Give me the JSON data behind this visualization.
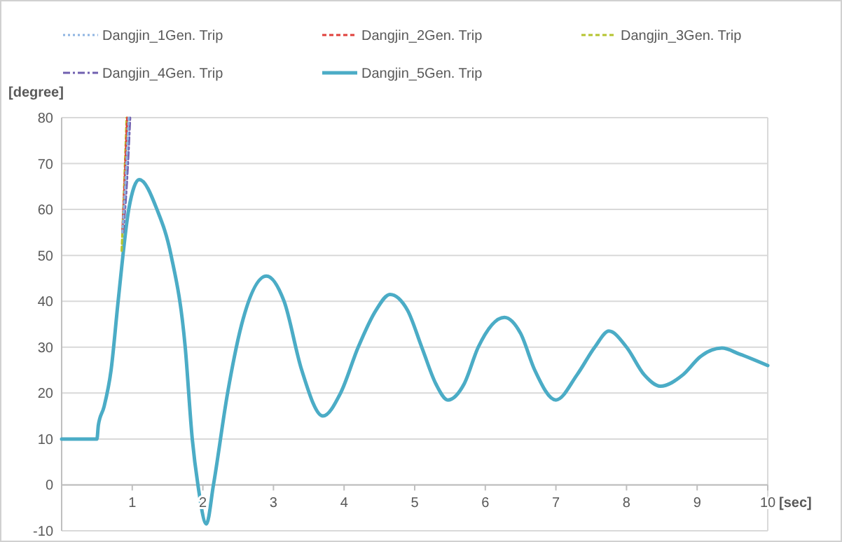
{
  "chart_data": {
    "type": "line",
    "xlabel": "[sec]",
    "ylabel": "[degree]",
    "xlim": [
      0,
      10
    ],
    "ylim": [
      -10,
      80
    ],
    "xticks": [
      1,
      2,
      3,
      4,
      5,
      6,
      7,
      8,
      9,
      10
    ],
    "yticks": [
      -10,
      0,
      10,
      20,
      30,
      40,
      50,
      60,
      70,
      80
    ],
    "grid": "y",
    "legend": "top",
    "series": [
      {
        "name": "Dangjin_1Gen. Trip",
        "color": "#8db4e2",
        "line_style": "dotted",
        "x": [
          0.86,
          0.9,
          0.95
        ],
        "values": [
          55,
          65,
          80
        ]
      },
      {
        "name": "Dangjin_2Gen. Trip",
        "color": "#e0403c",
        "line_style": "dashed",
        "x": [
          0.86,
          0.89,
          0.93
        ],
        "values": [
          55,
          65,
          80
        ]
      },
      {
        "name": "Dangjin_3Gen. Trip",
        "color": "#b5c42e",
        "line_style": "dashed",
        "x": [
          0.85,
          0.885,
          0.92
        ],
        "values": [
          51,
          65,
          80
        ]
      },
      {
        "name": "Dangjin_4Gen. Trip",
        "color": "#7060b0",
        "line_style": "dashdot",
        "x": [
          0.87,
          0.92,
          0.97
        ],
        "values": [
          55,
          65,
          80
        ]
      },
      {
        "name": "Dangjin_5Gen. Trip",
        "color": "#4bacc6",
        "line_style": "solid",
        "x": [
          0,
          0.5,
          0.52,
          0.6,
          0.7,
          0.8,
          0.95,
          1.1,
          1.35,
          1.55,
          1.75,
          1.85,
          1.93,
          2.05,
          2.15,
          2.35,
          2.55,
          2.9,
          3.15,
          3.4,
          3.7,
          3.95,
          4.2,
          4.45,
          4.65,
          4.9,
          5.1,
          5.3,
          5.47,
          5.7,
          5.9,
          6.27,
          6.5,
          6.7,
          7.0,
          7.3,
          7.55,
          7.75,
          8.0,
          8.25,
          8.48,
          8.8,
          9.05,
          9.35,
          9.6,
          10
        ],
        "values": [
          10,
          10,
          13,
          17,
          25,
          40,
          60,
          66.5,
          60,
          50,
          30,
          10,
          0,
          -8.5,
          0,
          20,
          35,
          45.5,
          40,
          25,
          15,
          20,
          30,
          38,
          41.5,
          38,
          30,
          22,
          18.5,
          22,
          30,
          36.5,
          33,
          25,
          18.5,
          24,
          30,
          33.5,
          30,
          24,
          21.5,
          24,
          28,
          29.8,
          28.5,
          26
        ]
      }
    ]
  }
}
